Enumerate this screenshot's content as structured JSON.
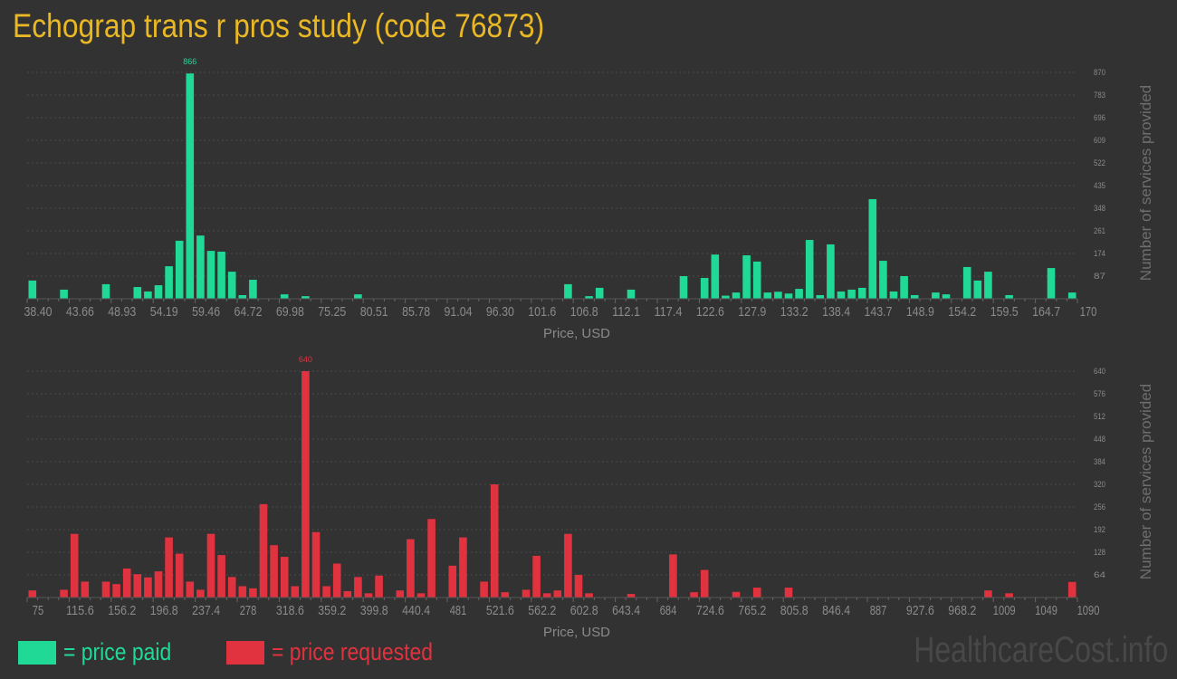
{
  "title": "Echograp trans r pros study (code 76873)",
  "watermark": "HealthcareCost.info",
  "legend": [
    {
      "label": "= price paid",
      "color": "#20d997"
    },
    {
      "label": "= price requested",
      "color": "#e0323f"
    }
  ],
  "chart_data": [
    {
      "type": "bar",
      "xlabel": "Price, USD",
      "ylabel": "Number of services provided",
      "color": "#20d997",
      "xlim": [
        38.4,
        170
      ],
      "ylim": [
        0,
        870
      ],
      "x_tick_labels": [
        "38.40",
        "43.66",
        "48.93",
        "54.19",
        "59.46",
        "64.72",
        "69.98",
        "75.25",
        "80.51",
        "85.78",
        "91.04",
        "96.30",
        "101.6",
        "106.8",
        "112.1",
        "117.4",
        "122.6",
        "127.9",
        "133.2",
        "138.4",
        "143.7",
        "148.9",
        "154.2",
        "159.5",
        "164.7",
        "170"
      ],
      "y_tick_labels": [
        "87",
        "174",
        "261",
        "348",
        "435",
        "522",
        "609",
        "696",
        "783",
        "870"
      ],
      "peak_label": "866",
      "values": [
        70,
        0,
        0,
        35,
        0,
        0,
        0,
        56,
        0,
        0,
        45,
        28,
        52,
        125,
        223,
        866,
        243,
        184,
        181,
        104,
        14,
        73,
        0,
        0,
        17,
        0,
        10,
        0,
        0,
        0,
        0,
        17,
        0,
        0,
        0,
        0,
        0,
        0,
        0,
        0,
        0,
        0,
        0,
        0,
        0,
        0,
        0,
        0,
        0,
        0,
        0,
        56,
        0,
        10,
        42,
        0,
        0,
        35,
        0,
        0,
        0,
        0,
        87,
        0,
        80,
        170,
        12,
        24,
        167,
        143,
        24,
        27,
        20,
        38,
        226,
        14,
        209,
        28,
        35,
        42,
        383,
        146,
        28,
        87,
        14,
        0,
        24,
        17,
        0,
        122,
        70,
        104,
        0,
        14,
        0,
        0,
        0,
        118,
        0,
        24
      ]
    },
    {
      "type": "bar",
      "xlabel": "Price, USD",
      "ylabel": "Number of services provided",
      "color": "#e0323f",
      "xlim": [
        75,
        1090
      ],
      "ylim": [
        0,
        640
      ],
      "x_tick_labels": [
        "75",
        "115.6",
        "156.2",
        "196.8",
        "237.4",
        "278",
        "318.6",
        "359.2",
        "399.8",
        "440.4",
        "481",
        "521.6",
        "562.2",
        "602.8",
        "643.4",
        "684",
        "724.6",
        "765.2",
        "805.8",
        "846.4",
        "887",
        "927.6",
        "968.2",
        "1009",
        "1049",
        "1090"
      ],
      "y_tick_labels": [
        "64",
        "128",
        "192",
        "256",
        "320",
        "384",
        "448",
        "512",
        "576",
        "640"
      ],
      "peak_label": "640",
      "values": [
        20,
        0,
        0,
        22,
        180,
        45,
        0,
        45,
        38,
        82,
        66,
        57,
        74,
        170,
        124,
        45,
        22,
        180,
        120,
        58,
        32,
        26,
        264,
        148,
        115,
        32,
        640,
        185,
        32,
        96,
        18,
        58,
        12,
        62,
        0,
        20,
        165,
        12,
        222,
        0,
        90,
        170,
        0,
        45,
        320,
        15,
        0,
        22,
        118,
        12,
        20,
        180,
        64,
        12,
        0,
        0,
        0,
        10,
        0,
        0,
        0,
        122,
        0,
        15,
        78,
        0,
        0,
        16,
        0,
        28,
        0,
        0,
        28,
        0,
        0,
        0,
        0,
        0,
        0,
        0,
        0,
        0,
        0,
        0,
        0,
        0,
        0,
        0,
        0,
        0,
        0,
        20,
        0,
        12,
        0,
        0,
        0,
        0,
        0,
        44
      ]
    }
  ]
}
